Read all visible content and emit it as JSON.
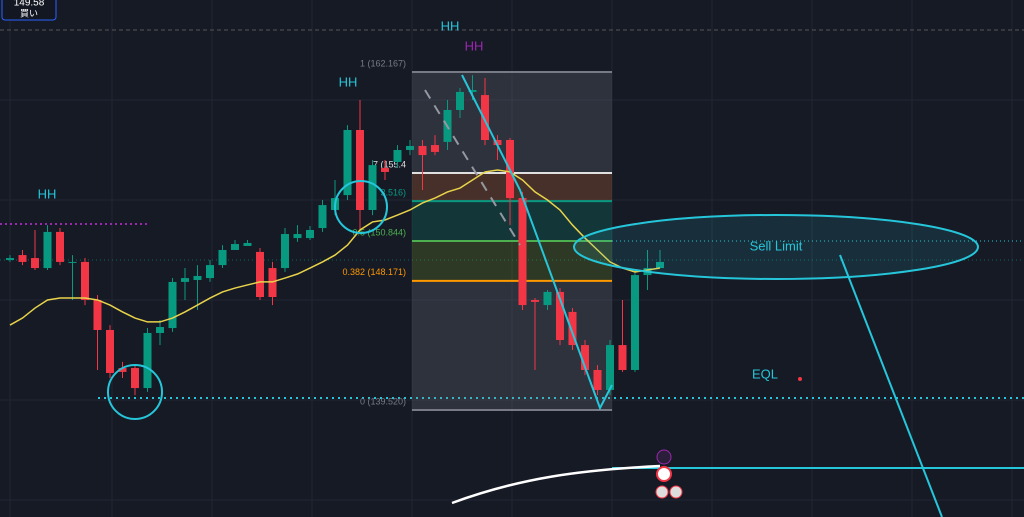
{
  "chart_data": {
    "type": "candlestick",
    "ylim": [
      132.35,
      166.99
    ],
    "up_color": "#089981",
    "down_color": "#f23645",
    "ma_color": "#e8d34a",
    "open": [
      149.57,
      149.9,
      149.7,
      149.03,
      151.45,
      149.44,
      149.44,
      146.89,
      144.88,
      142.33,
      142.33,
      140.99,
      144.68,
      145.01,
      148.1,
      148.23,
      148.36,
      149.23,
      150.24,
      150.51,
      150.11,
      149.03,
      149.03,
      151.04,
      151.04,
      151.71,
      152.92,
      153.92,
      158.28,
      152.92,
      155.73,
      156.14,
      156.94,
      157.21,
      157.27,
      157.48,
      159.62,
      160.83,
      160.62,
      157.61,
      157.61,
      153.72,
      146.89,
      146.55,
      147.43,
      146.09,
      143.87,
      142.2,
      140.86,
      143.87,
      142.2,
      148.56,
      149.03
    ],
    "high": [
      149.9,
      150.24,
      151.58,
      151.91,
      151.71,
      149.9,
      149.7,
      147.22,
      145.21,
      142.74,
      142.53,
      145.01,
      145.55,
      148.36,
      149.03,
      149.23,
      149.57,
      150.57,
      150.91,
      150.91,
      150.37,
      149.44,
      151.71,
      151.91,
      151.85,
      153.59,
      154.93,
      158.61,
      160.29,
      156.27,
      156.27,
      157.27,
      157.61,
      157.61,
      157.94,
      160.29,
      161.09,
      161.96,
      161.76,
      157.94,
      157.74,
      154.13,
      147.02,
      147.56,
      147.69,
      146.35,
      144.21,
      142.53,
      144.21,
      146.89,
      148.9,
      150.24,
      150.24
    ],
    "low": [
      149.44,
      149.23,
      148.9,
      148.9,
      149.23,
      146.89,
      146.55,
      142.2,
      141.66,
      141.66,
      140.52,
      140.73,
      143.87,
      144.75,
      146.89,
      146.22,
      148.1,
      149.03,
      150.57,
      150.64,
      146.89,
      146.55,
      148.77,
      150.78,
      150.91,
      151.45,
      152.58,
      153.59,
      151.58,
      152.58,
      154.93,
      155.73,
      156.6,
      154.26,
      156.6,
      156.94,
      159.08,
      160.29,
      157.27,
      156.27,
      151.91,
      146.22,
      142.2,
      146.22,
      143.87,
      143.54,
      141.86,
      140.52,
      140.52,
      142.07,
      142.07,
      147.56,
      149.03
    ],
    "close": [
      149.7,
      149.44,
      149.03,
      151.45,
      149.44,
      149.44,
      146.89,
      144.88,
      142.0,
      142.07,
      140.99,
      144.68,
      145.08,
      148.1,
      148.36,
      148.5,
      149.23,
      150.24,
      150.64,
      150.71,
      147.09,
      147.09,
      151.31,
      151.31,
      151.58,
      153.25,
      153.72,
      158.28,
      152.92,
      155.93,
      155.47,
      156.94,
      157.21,
      156.6,
      156.81,
      159.62,
      160.83,
      160.96,
      157.61,
      157.27,
      153.72,
      146.55,
      146.76,
      147.43,
      144.21,
      143.87,
      142.2,
      140.86,
      143.87,
      142.2,
      148.56,
      149.03,
      149.44
    ],
    "ma": [
      145.21,
      145.68,
      146.35,
      146.89,
      147.02,
      147.02,
      147.02,
      146.89,
      146.55,
      146.09,
      145.68,
      145.42,
      145.42,
      145.68,
      146.09,
      146.55,
      147.02,
      147.43,
      147.69,
      147.9,
      148.1,
      148.1,
      148.36,
      148.63,
      149.03,
      149.44,
      149.9,
      150.57,
      151.58,
      152.12,
      152.25,
      152.58,
      152.92,
      153.39,
      153.72,
      154.13,
      154.39,
      154.93,
      155.47,
      155.6,
      155.47,
      154.93,
      154.13,
      153.59,
      152.92,
      151.91,
      151.04,
      150.24,
      149.44,
      149.03,
      148.77,
      148.9,
      149.03
    ],
    "fib_levels": [
      {
        "value": 162.167,
        "label": "1 (162.167)",
        "color": "#787b86"
      },
      {
        "value": 155.4,
        "label": "7 (155.4",
        "color": "#e0e0e0"
      },
      {
        "value": 153.516,
        "label": "3.516)",
        "color": "#089981"
      },
      {
        "value": 150.844,
        "label": "0.5 (150.844)",
        "color": "#4caf50"
      },
      {
        "value": 148.171,
        "label": "0.382 (148.171)",
        "color": "#ff9800"
      },
      {
        "value": 139.52,
        "label": "0 (139.520)",
        "color": "#787b86"
      }
    ],
    "zone_colors": [
      "rgba(120,123,134,0.25)",
      "rgba(242,128,60,0.22)",
      "rgba(8,153,129,0.22)",
      "rgba(120,150,40,0.25)",
      "rgba(120,123,134,0.25)"
    ],
    "annotations": [
      {
        "text": "HH",
        "color": "#26c6da"
      },
      {
        "text": "HH",
        "color": "#26c6da"
      },
      {
        "text": "HH",
        "color": "#26c6da"
      },
      {
        "text": "HH",
        "color": "#9c27b0"
      },
      {
        "text": "Sell Limit",
        "color": "#26c6da"
      },
      {
        "text": "EQL",
        "color": "#26c6da"
      }
    ],
    "price_box": {
      "price": "149.58",
      "label": "買い"
    }
  }
}
